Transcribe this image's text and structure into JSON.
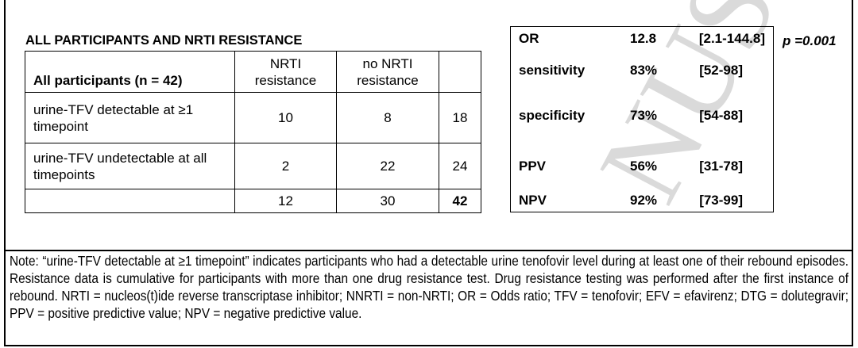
{
  "table_title": "ALL PARTICIPANTS AND NRTI RESISTANCE",
  "contingency": {
    "header": [
      "All participants (n = 42)",
      "NRTI resistance",
      "no NRTI resistance",
      ""
    ],
    "rows": [
      {
        "label": "urine-TFV detectable at ≥1 timepoint",
        "nrti": "10",
        "no_nrti": "8",
        "total": "18"
      },
      {
        "label": "urine-TFV undetectable at all timepoints",
        "nrti": "2",
        "no_nrti": "22",
        "total": "24"
      },
      {
        "label": "",
        "nrti": "12",
        "no_nrti": "30",
        "total": "42"
      }
    ]
  },
  "stats": [
    {
      "name": "OR",
      "value": "12.8",
      "ci": "[2.1-144.8]"
    },
    {
      "name": "sensitivity",
      "value": "83%",
      "ci": "[52-98]"
    },
    {
      "name": "specificity",
      "value": "73%",
      "ci": "[54-88]"
    },
    {
      "name": "PPV",
      "value": "56%",
      "ci": "[31-78]"
    },
    {
      "name": "NPV",
      "value": "92%",
      "ci": "[73-99]"
    }
  ],
  "p_value": "p =0.001",
  "note": "Note: “urine-TFV detectable at ≥1 timepoint” indicates participants who had a detectable urine tenofovir level during at least one of their rebound episodes. Resistance data is cumulative for participants with more than one drug resistance test. Drug resistance testing was performed after the first instance of rebound. NRTI = nucleos(t)ide reverse transcriptase inhibitor; NNRTI = non-NRTI; OR = Odds ratio; TFV = tenofovir; EFV = efavirenz; DTG = dolutegravir; PPV = positive predictive value; NPV = negative predictive value.",
  "watermark": "NUSCRIPT"
}
